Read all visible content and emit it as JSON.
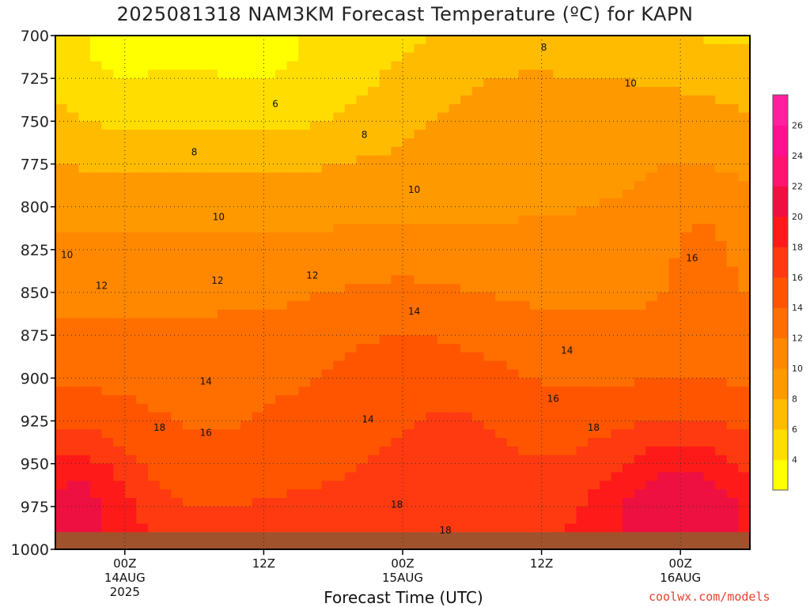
{
  "chart_data": {
    "type": "heatmap",
    "title": "2025081318 NAM3KM Forecast Temperature (ºC) for KAPN",
    "xlabel": "Forecast Time (UTC)",
    "ylabel": "",
    "y_axis": {
      "ticks": [
        700,
        725,
        750,
        775,
        800,
        825,
        850,
        875,
        900,
        925,
        950,
        975,
        1000
      ],
      "range": [
        700,
        1000
      ],
      "inverted": true
    },
    "x_axis": {
      "ticks": [
        {
          "hour": 6,
          "lines": [
            "00Z",
            "14AUG",
            "2025"
          ]
        },
        {
          "hour": 18,
          "lines": [
            "12Z"
          ]
        },
        {
          "hour": 30,
          "lines": [
            "00Z",
            "15AUG"
          ]
        },
        {
          "hour": 42,
          "lines": [
            "12Z"
          ]
        },
        {
          "hour": 54,
          "lines": [
            "00Z",
            "16AUG"
          ]
        }
      ],
      "range": [
        0,
        60
      ]
    },
    "colorbar": {
      "levels": [
        2,
        4,
        6,
        8,
        10,
        12,
        14,
        16,
        18,
        20,
        22,
        24,
        26,
        28
      ],
      "tick_labels": [
        4,
        6,
        8,
        10,
        12,
        14,
        16,
        18,
        20,
        22,
        24,
        26
      ],
      "colors": [
        "#ffff00",
        "#ffdd00",
        "#ffbb00",
        "#ff9900",
        "#ff8800",
        "#ff6f00",
        "#ff5500",
        "#ff3a10",
        "#ff1a1a",
        "#ee1040",
        "#ff1470",
        "#ff1090",
        "#ff20a0"
      ]
    },
    "contour_labels": [
      {
        "text": "8",
        "hour": 42.2,
        "p": 707
      },
      {
        "text": "10",
        "hour": 49.7,
        "p": 728
      },
      {
        "text": "6",
        "hour": 19.0,
        "p": 740
      },
      {
        "text": "8",
        "hour": 26.7,
        "p": 758
      },
      {
        "text": "8",
        "hour": 12.0,
        "p": 768
      },
      {
        "text": "10",
        "hour": 31.0,
        "p": 790
      },
      {
        "text": "10",
        "hour": 14.1,
        "p": 806
      },
      {
        "text": "10",
        "hour": 1.0,
        "p": 828
      },
      {
        "text": "12",
        "hour": 4.0,
        "p": 846
      },
      {
        "text": "12",
        "hour": 14.0,
        "p": 843
      },
      {
        "text": "12",
        "hour": 22.2,
        "p": 840
      },
      {
        "text": "14",
        "hour": 31.0,
        "p": 861
      },
      {
        "text": "16",
        "hour": 55.0,
        "p": 830
      },
      {
        "text": "14",
        "hour": 44.2,
        "p": 884
      },
      {
        "text": "14",
        "hour": 13.0,
        "p": 902
      },
      {
        "text": "16",
        "hour": 43.0,
        "p": 912
      },
      {
        "text": "14",
        "hour": 27.0,
        "p": 924
      },
      {
        "text": "18",
        "hour": 9.0,
        "p": 929
      },
      {
        "text": "16",
        "hour": 13.0,
        "p": 932
      },
      {
        "text": "18",
        "hour": 46.5,
        "p": 929
      },
      {
        "text": "18",
        "hour": 29.5,
        "p": 974
      },
      {
        "text": "18",
        "hour": 33.7,
        "p": 989
      }
    ],
    "surface_pressure_approx": 990
  },
  "credit": "coolwx.com/models"
}
